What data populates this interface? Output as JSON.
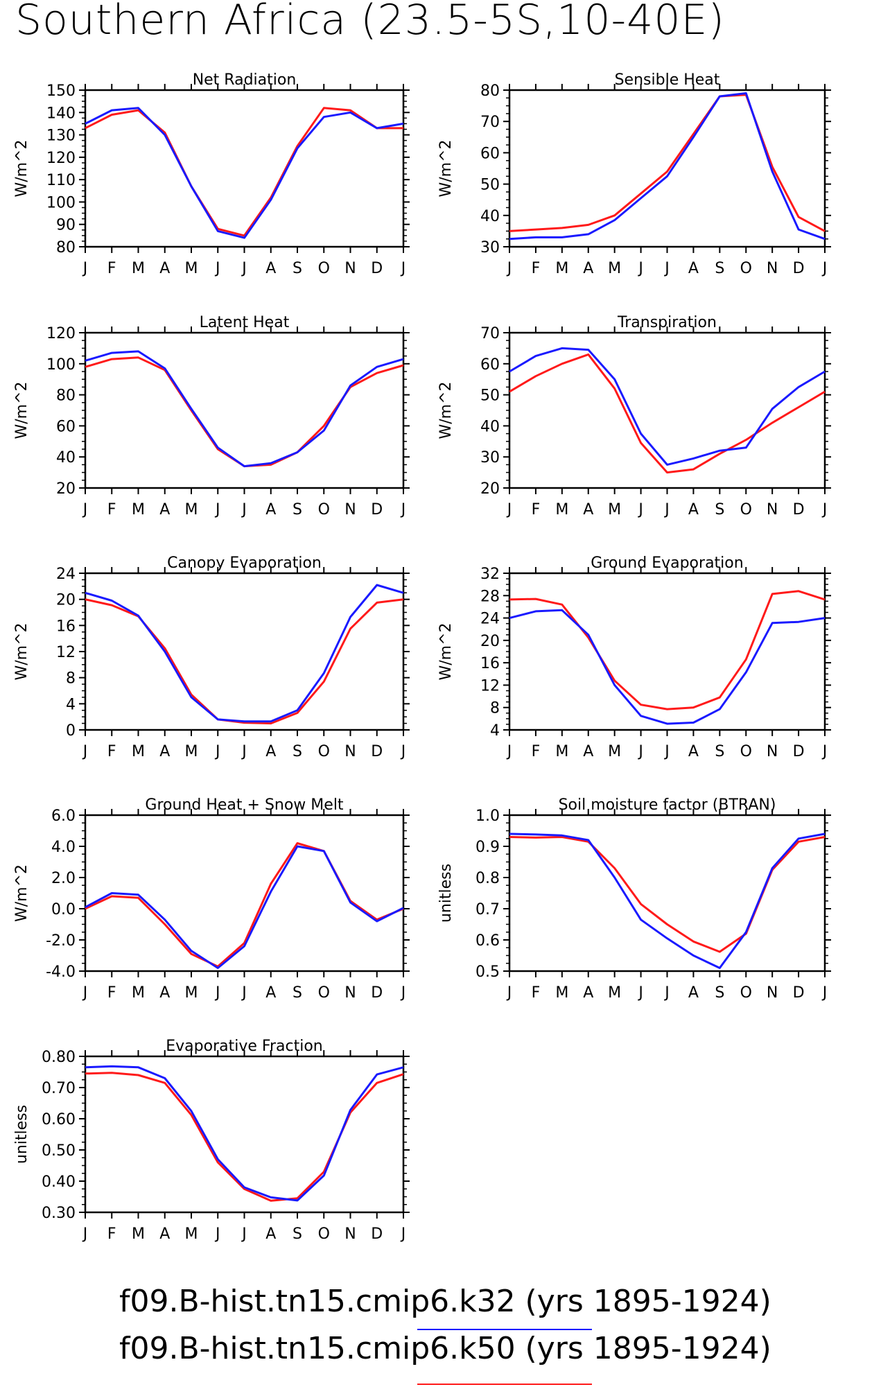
{
  "title": "Southern Africa (23.5-5S,10-40E)",
  "colors": {
    "k32": "#1a1aff",
    "k50": "#ff1a1a"
  },
  "legend": [
    {
      "label": "f09.B-hist.tn15.cmip6.k32 (yrs 1895-1924)",
      "color": "#1a1aff"
    },
    {
      "label": "f09.B-hist.tn15.cmip6.k50 (yrs 1895-1924)",
      "color": "#ff1a1a"
    }
  ],
  "chart_data": [
    {
      "type": "line",
      "title": "Net Radiation",
      "ylabel": "W/m^2",
      "x": [
        "J",
        "F",
        "M",
        "A",
        "M",
        "J",
        "J",
        "A",
        "S",
        "O",
        "N",
        "D",
        "J"
      ],
      "ylim": [
        80,
        150
      ],
      "yticks": [
        80,
        90,
        100,
        110,
        120,
        130,
        140,
        150
      ],
      "ytick_labels": [
        "80",
        "90",
        "100",
        "110",
        "120",
        "130",
        "140",
        "150"
      ],
      "series": [
        {
          "name": "f09.B-hist.tn15.cmip6.k32",
          "color": "#1a1aff",
          "values": [
            135,
            141,
            142,
            130,
            107,
            87,
            84,
            101,
            124,
            138,
            140,
            133,
            135
          ]
        },
        {
          "name": "f09.B-hist.tn15.cmip6.k50",
          "color": "#ff1a1a",
          "values": [
            133,
            139,
            141,
            131,
            107,
            88,
            85,
            102,
            125,
            142,
            141,
            133,
            133
          ]
        }
      ]
    },
    {
      "type": "line",
      "title": "Sensible Heat",
      "ylabel": "W/m^2",
      "x": [
        "J",
        "F",
        "M",
        "A",
        "M",
        "J",
        "J",
        "A",
        "S",
        "O",
        "N",
        "D",
        "J"
      ],
      "ylim": [
        30,
        80
      ],
      "yticks": [
        30,
        40,
        50,
        60,
        70,
        80
      ],
      "ytick_labels": [
        "30",
        "40",
        "50",
        "60",
        "70",
        "80"
      ],
      "series": [
        {
          "name": "f09.B-hist.tn15.cmip6.k32",
          "color": "#1a1aff",
          "values": [
            32.5,
            33,
            33,
            34,
            38.5,
            45.5,
            52.5,
            65,
            78,
            79,
            54,
            35.5,
            32.5
          ]
        },
        {
          "name": "f09.B-hist.tn15.cmip6.k50",
          "color": "#ff1a1a",
          "values": [
            35,
            35.5,
            36,
            37,
            40,
            47,
            54,
            66,
            78,
            78.5,
            55.5,
            39.5,
            35
          ]
        }
      ]
    },
    {
      "type": "line",
      "title": "Latent Heat",
      "ylabel": "W/m^2",
      "x": [
        "J",
        "F",
        "M",
        "A",
        "M",
        "J",
        "J",
        "A",
        "S",
        "O",
        "N",
        "D",
        "J"
      ],
      "ylim": [
        20,
        120
      ],
      "yticks": [
        20,
        40,
        60,
        80,
        100,
        120
      ],
      "ytick_labels": [
        "20",
        "40",
        "60",
        "80",
        "100",
        "120"
      ],
      "series": [
        {
          "name": "f09.B-hist.tn15.cmip6.k32",
          "color": "#1a1aff",
          "values": [
            102,
            107,
            108,
            97,
            71,
            46,
            34,
            36,
            43,
            57,
            86,
            98,
            103
          ]
        },
        {
          "name": "f09.B-hist.tn15.cmip6.k50",
          "color": "#ff1a1a",
          "values": [
            98,
            103,
            104,
            96,
            70,
            45,
            34,
            35,
            43,
            60,
            85,
            94,
            99
          ]
        }
      ]
    },
    {
      "type": "line",
      "title": "Transpiration",
      "ylabel": "W/m^2",
      "x": [
        "J",
        "F",
        "M",
        "A",
        "M",
        "J",
        "J",
        "A",
        "S",
        "O",
        "N",
        "D",
        "J"
      ],
      "ylim": [
        20,
        70
      ],
      "yticks": [
        20,
        30,
        40,
        50,
        60,
        70
      ],
      "ytick_labels": [
        "20",
        "30",
        "40",
        "50",
        "60",
        "70"
      ],
      "series": [
        {
          "name": "f09.B-hist.tn15.cmip6.k32",
          "color": "#1a1aff",
          "values": [
            57.5,
            62.5,
            65,
            64.5,
            55,
            37.5,
            27.5,
            29.5,
            32,
            33,
            45.5,
            52.5,
            57.5
          ]
        },
        {
          "name": "f09.B-hist.tn15.cmip6.k50",
          "color": "#ff1a1a",
          "values": [
            51,
            56,
            60,
            63,
            52,
            34.5,
            25,
            26,
            31,
            35.5,
            41,
            46,
            51
          ]
        }
      ]
    },
    {
      "type": "line",
      "title": "Canopy Evaporation",
      "ylabel": "W/m^2",
      "x": [
        "J",
        "F",
        "M",
        "A",
        "M",
        "J",
        "J",
        "A",
        "S",
        "O",
        "N",
        "D",
        "J"
      ],
      "ylim": [
        0,
        24
      ],
      "yticks": [
        0,
        4,
        8,
        12,
        16,
        20,
        24
      ],
      "ytick_labels": [
        "0",
        "4",
        "8",
        "12",
        "16",
        "20",
        "24"
      ],
      "series": [
        {
          "name": "f09.B-hist.tn15.cmip6.k32",
          "color": "#1a1aff",
          "values": [
            21,
            19.8,
            17.5,
            12,
            5,
            1.6,
            1.3,
            1.3,
            3,
            8.7,
            17.3,
            22.2,
            21
          ]
        },
        {
          "name": "f09.B-hist.tn15.cmip6.k50",
          "color": "#ff1a1a",
          "values": [
            20,
            19.1,
            17.4,
            12.5,
            5.4,
            1.6,
            1.1,
            1.0,
            2.6,
            7.4,
            15.5,
            19.5,
            20
          ]
        }
      ]
    },
    {
      "type": "line",
      "title": "Ground Evaporation",
      "ylabel": "W/m^2",
      "x": [
        "J",
        "F",
        "M",
        "A",
        "M",
        "J",
        "J",
        "A",
        "S",
        "O",
        "N",
        "D",
        "J"
      ],
      "ylim": [
        4,
        32
      ],
      "yticks": [
        4,
        8,
        12,
        16,
        20,
        24,
        28,
        32
      ],
      "ytick_labels": [
        "4",
        "8",
        "12",
        "16",
        "20",
        "24",
        "28",
        "32"
      ],
      "series": [
        {
          "name": "f09.B-hist.tn15.cmip6.k32",
          "color": "#1a1aff",
          "values": [
            24,
            25.2,
            25.4,
            21,
            12,
            6.5,
            5.1,
            5.3,
            7.7,
            14.3,
            23.1,
            23.3,
            24
          ]
        },
        {
          "name": "f09.B-hist.tn15.cmip6.k50",
          "color": "#ff1a1a",
          "values": [
            27.3,
            27.4,
            26.4,
            20.5,
            12.8,
            8.5,
            7.7,
            8.0,
            9.8,
            16.6,
            28.3,
            28.8,
            27.3
          ]
        }
      ]
    },
    {
      "type": "line",
      "title": "Ground Heat + Snow Melt",
      "ylabel": "W/m^2",
      "x": [
        "J",
        "F",
        "M",
        "A",
        "M",
        "J",
        "J",
        "A",
        "S",
        "O",
        "N",
        "D",
        "J"
      ],
      "ylim": [
        -4,
        6
      ],
      "yticks": [
        -4,
        -2,
        0,
        2,
        4,
        6
      ],
      "ytick_labels": [
        "-4.0",
        "-2.0",
        "0.0",
        "2.0",
        "4.0",
        "6.0"
      ],
      "series": [
        {
          "name": "f09.B-hist.tn15.cmip6.k32",
          "color": "#1a1aff",
          "values": [
            0.1,
            1.0,
            0.9,
            -0.7,
            -2.7,
            -3.8,
            -2.4,
            1.1,
            4.0,
            3.7,
            0.4,
            -0.8,
            0.05
          ]
        },
        {
          "name": "f09.B-hist.tn15.cmip6.k50",
          "color": "#ff1a1a",
          "values": [
            0.0,
            0.8,
            0.7,
            -1.0,
            -2.9,
            -3.7,
            -2.2,
            1.6,
            4.2,
            3.7,
            0.5,
            -0.7,
            0.0
          ]
        }
      ]
    },
    {
      "type": "line",
      "title": "Soil moisture factor (BTRAN)",
      "ylabel": "unitless",
      "x": [
        "J",
        "F",
        "M",
        "A",
        "M",
        "J",
        "J",
        "A",
        "S",
        "O",
        "N",
        "D",
        "J"
      ],
      "ylim": [
        0.5,
        1.0
      ],
      "yticks": [
        0.5,
        0.6,
        0.7,
        0.8,
        0.9,
        1.0
      ],
      "ytick_labels": [
        "0.5",
        "0.6",
        "0.7",
        "0.8",
        "0.9",
        "1.0"
      ],
      "series": [
        {
          "name": "f09.B-hist.tn15.cmip6.k32",
          "color": "#1a1aff",
          "values": [
            0.94,
            0.938,
            0.935,
            0.92,
            0.8,
            0.665,
            0.605,
            0.55,
            0.51,
            0.625,
            0.83,
            0.925,
            0.94
          ]
        },
        {
          "name": "f09.B-hist.tn15.cmip6.k50",
          "color": "#ff1a1a",
          "values": [
            0.93,
            0.928,
            0.93,
            0.915,
            0.83,
            0.715,
            0.65,
            0.595,
            0.562,
            0.62,
            0.825,
            0.915,
            0.93
          ]
        }
      ]
    },
    {
      "type": "line",
      "title": "Evaporative Fraction",
      "ylabel": "unitless",
      "x": [
        "J",
        "F",
        "M",
        "A",
        "M",
        "J",
        "J",
        "A",
        "S",
        "O",
        "N",
        "D",
        "J"
      ],
      "ylim": [
        0.3,
        0.8
      ],
      "yticks": [
        0.3,
        0.4,
        0.5,
        0.6,
        0.7,
        0.8
      ],
      "ytick_labels": [
        "0.30",
        "0.40",
        "0.50",
        "0.60",
        "0.70",
        "0.80"
      ],
      "series": [
        {
          "name": "f09.B-hist.tn15.cmip6.k32",
          "color": "#1a1aff",
          "values": [
            0.765,
            0.768,
            0.765,
            0.73,
            0.625,
            0.47,
            0.38,
            0.348,
            0.338,
            0.418,
            0.628,
            0.742,
            0.765
          ]
        },
        {
          "name": "f09.B-hist.tn15.cmip6.k50",
          "color": "#ff1a1a",
          "values": [
            0.745,
            0.747,
            0.74,
            0.715,
            0.612,
            0.46,
            0.375,
            0.337,
            0.345,
            0.43,
            0.62,
            0.715,
            0.743
          ]
        }
      ]
    }
  ]
}
